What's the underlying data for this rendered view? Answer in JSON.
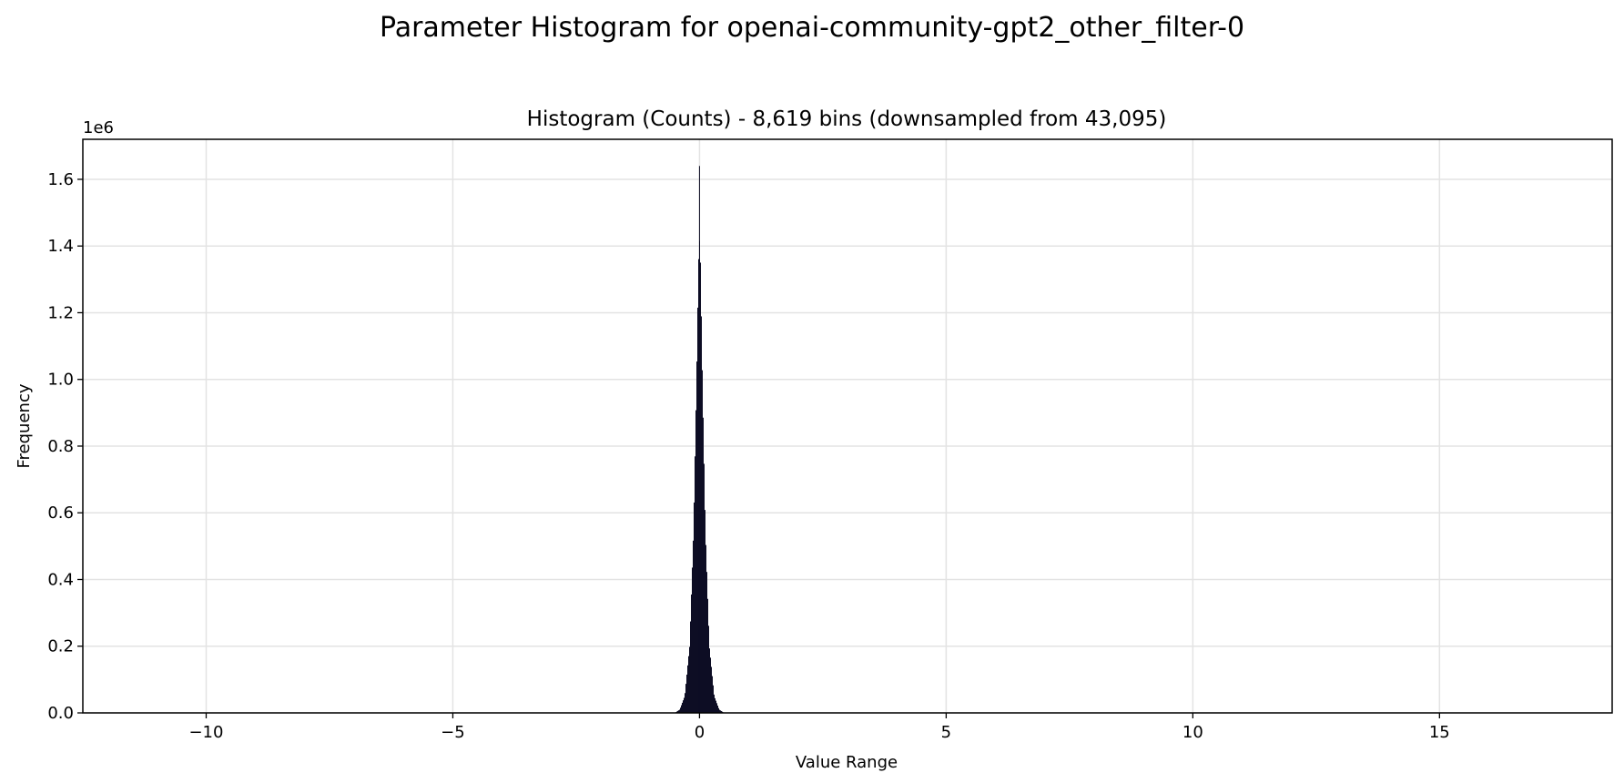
{
  "chart_data": {
    "type": "histogram",
    "suptitle": "Parameter Histogram for openai-community-gpt2_other_filter-0",
    "title": "Histogram (Counts) - 8,619 bins (downsampled from 43,095)",
    "xlabel": "Value Range",
    "ylabel": "Frequency",
    "y_offset_label": "1e6",
    "xlim": [
      -12.5,
      18.5
    ],
    "ylim": [
      0,
      1.72
    ],
    "y_scale_multiplier": 1000000,
    "x_ticks": [
      -10,
      -5,
      0,
      5,
      10,
      15
    ],
    "x_tick_labels": [
      "−10",
      "−5",
      "0",
      "5",
      "10",
      "15"
    ],
    "y_ticks": [
      0.0,
      0.2,
      0.4,
      0.6,
      0.8,
      1.0,
      1.2,
      1.4,
      1.6
    ],
    "y_tick_labels": [
      "0.0",
      "0.2",
      "0.4",
      "0.6",
      "0.8",
      "1.0",
      "1.2",
      "1.4",
      "1.6"
    ],
    "grid": true,
    "bar_color": "#0d0d24",
    "distribution": {
      "center": 0.0,
      "peak_value": 1.4,
      "spike_value": 1.64,
      "half_width_at_base": 0.5
    },
    "profile": [
      {
        "x": -0.5,
        "y": 0.0
      },
      {
        "x": -0.4,
        "y": 0.01
      },
      {
        "x": -0.3,
        "y": 0.05
      },
      {
        "x": -0.2,
        "y": 0.2
      },
      {
        "x": -0.12,
        "y": 0.55
      },
      {
        "x": -0.06,
        "y": 1.0
      },
      {
        "x": -0.02,
        "y": 1.35
      },
      {
        "x": 0.0,
        "y": 1.42
      },
      {
        "x": 0.02,
        "y": 1.35
      },
      {
        "x": 0.06,
        "y": 1.0
      },
      {
        "x": 0.12,
        "y": 0.55
      },
      {
        "x": 0.2,
        "y": 0.2
      },
      {
        "x": 0.3,
        "y": 0.05
      },
      {
        "x": 0.4,
        "y": 0.01
      },
      {
        "x": 0.5,
        "y": 0.0
      }
    ]
  }
}
